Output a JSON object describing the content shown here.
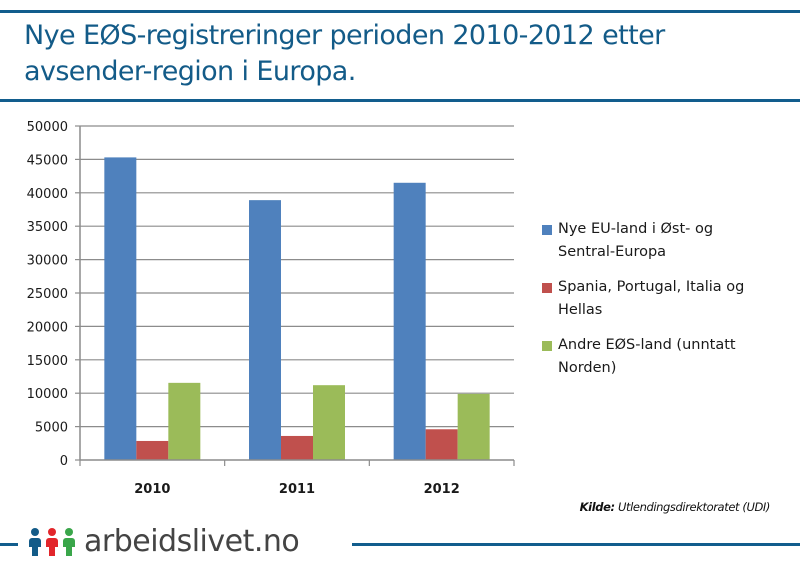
{
  "header": {
    "title_line1": "Nye EØS-registreringer perioden 2010-2012 etter",
    "title_line2": "avsender-region i Europa."
  },
  "chart_data": {
    "type": "bar",
    "title": "Nye EØS-registreringer perioden 2010-2012 etter avsender-region i Europa.",
    "xlabel": "",
    "ylabel": "",
    "categories": [
      "2010",
      "2011",
      "2012"
    ],
    "series": [
      {
        "name": "Nye EU-land i Øst- og Sentral-Europa",
        "legend_lines": [
          "Nye EU-land i Øst- og",
          "Sentral-Europa"
        ],
        "color": "#4f81bd",
        "values": [
          45300,
          38900,
          41500
        ]
      },
      {
        "name": "Spania, Portugal, Italia og Hellas",
        "legend_lines": [
          "Spania, Portugal, Italia og",
          "Hellas"
        ],
        "color": "#c0504d",
        "values": [
          2850,
          3600,
          4600
        ]
      },
      {
        "name": "Andre EØS-land (unntatt Norden)",
        "legend_lines": [
          "Andre EØS-land (unntatt",
          "Norden)"
        ],
        "color": "#9bbb59",
        "values": [
          11550,
          11200,
          9900
        ]
      }
    ],
    "ylim": [
      0,
      50000
    ],
    "yticks": [
      0,
      5000,
      10000,
      15000,
      20000,
      25000,
      30000,
      35000,
      40000,
      45000,
      50000
    ],
    "grid": true,
    "legend_position": "right"
  },
  "source": {
    "label": "Kilde:",
    "text": "Utlendingsdirektoratet (UDI)"
  },
  "footer": {
    "brand": "arbeidslivet.no",
    "logo_colors": [
      "#135b88",
      "#e2262b",
      "#3aa64a"
    ]
  },
  "colors": {
    "brand_blue": "#125d8d",
    "title_color": "#135b88"
  }
}
